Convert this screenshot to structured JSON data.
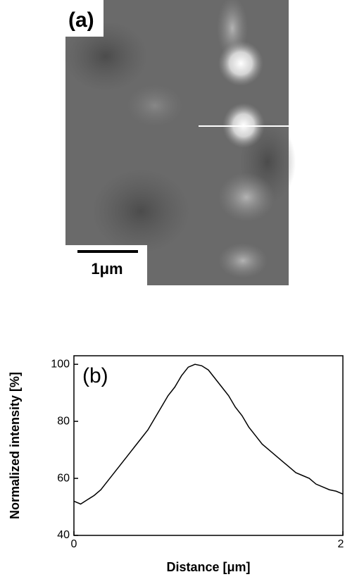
{
  "panel_a": {
    "label": "(a)",
    "scale_bar": "1μm"
  },
  "chart_data": {
    "type": "line",
    "annotation": "(b)",
    "xlabel": "Distance [μm]",
    "ylabel": "Normalized intensity [%]",
    "x": [
      0,
      0.05,
      0.1,
      0.15,
      0.2,
      0.25,
      0.3,
      0.35,
      0.4,
      0.45,
      0.5,
      0.55,
      0.6,
      0.65,
      0.7,
      0.75,
      0.8,
      0.85,
      0.9,
      0.95,
      1.0,
      1.05,
      1.1,
      1.15,
      1.2,
      1.25,
      1.3,
      1.35,
      1.4,
      1.45,
      1.5,
      1.55,
      1.6,
      1.65,
      1.7,
      1.75,
      1.8,
      1.85,
      1.9,
      1.95,
      2.0
    ],
    "series": [
      {
        "color": "#000000",
        "values": [
          52,
          51,
          52.5,
          54,
          56,
          59,
          62,
          65,
          68,
          71,
          74,
          77,
          81,
          85,
          89,
          92,
          96,
          99,
          100,
          99.5,
          98,
          95,
          92,
          89,
          85,
          82,
          78,
          75,
          72,
          70,
          68,
          66,
          64,
          62,
          61,
          60,
          58,
          57,
          56,
          55.5,
          54.5
        ]
      }
    ],
    "xlim": [
      0,
      2
    ],
    "xticks": [
      0,
      2
    ],
    "ylim": [
      40,
      103
    ],
    "yticks": [
      40,
      60,
      80,
      100
    ]
  }
}
